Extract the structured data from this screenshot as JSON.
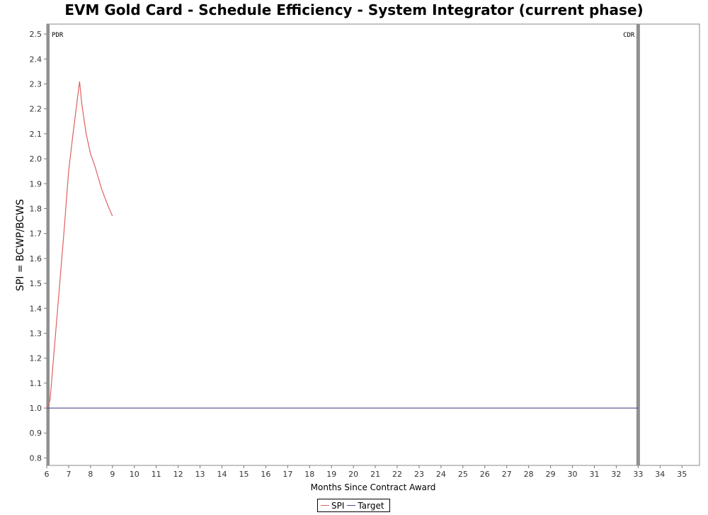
{
  "chart_data": {
    "type": "line",
    "title": "EVM Gold Card - Schedule Efficiency - System Integrator (current phase)",
    "xlabel": "Months Since Contract Award",
    "ylabel": "SPI = BCWP/BCWS",
    "xlim": [
      6,
      35.8
    ],
    "ylim": [
      0.77,
      2.54
    ],
    "xticks": [
      6,
      7,
      8,
      9,
      10,
      11,
      12,
      13,
      14,
      15,
      16,
      17,
      18,
      19,
      20,
      21,
      22,
      23,
      24,
      25,
      26,
      27,
      28,
      29,
      30,
      31,
      32,
      33,
      34,
      35
    ],
    "yticks": [
      0.8,
      0.9,
      1.0,
      1.1,
      1.2,
      1.3,
      1.4,
      1.5,
      1.6,
      1.7,
      1.8,
      1.9,
      2.0,
      2.1,
      2.2,
      2.3,
      2.4,
      2.5
    ],
    "series": [
      {
        "name": "SPI",
        "color": "#e06060",
        "x": [
          6.0,
          6.15,
          6.5,
          6.8,
          7.0,
          7.2,
          7.5,
          7.6,
          7.8,
          8.0,
          8.2,
          8.5,
          8.8,
          9.0
        ],
        "y": [
          1.0,
          1.03,
          1.4,
          1.72,
          1.95,
          2.1,
          2.31,
          2.22,
          2.1,
          2.02,
          1.97,
          1.88,
          1.81,
          1.77
        ]
      },
      {
        "name": "Target",
        "color": "#4a4a8a",
        "x": [
          6.0,
          33.0
        ],
        "y": [
          1.0,
          1.0
        ]
      }
    ],
    "milestones": [
      {
        "label": "PDR",
        "x": 6.0
      },
      {
        "label": "CDR",
        "x": 33.0
      }
    ],
    "grid": false,
    "legend_position": "bottom-center"
  }
}
